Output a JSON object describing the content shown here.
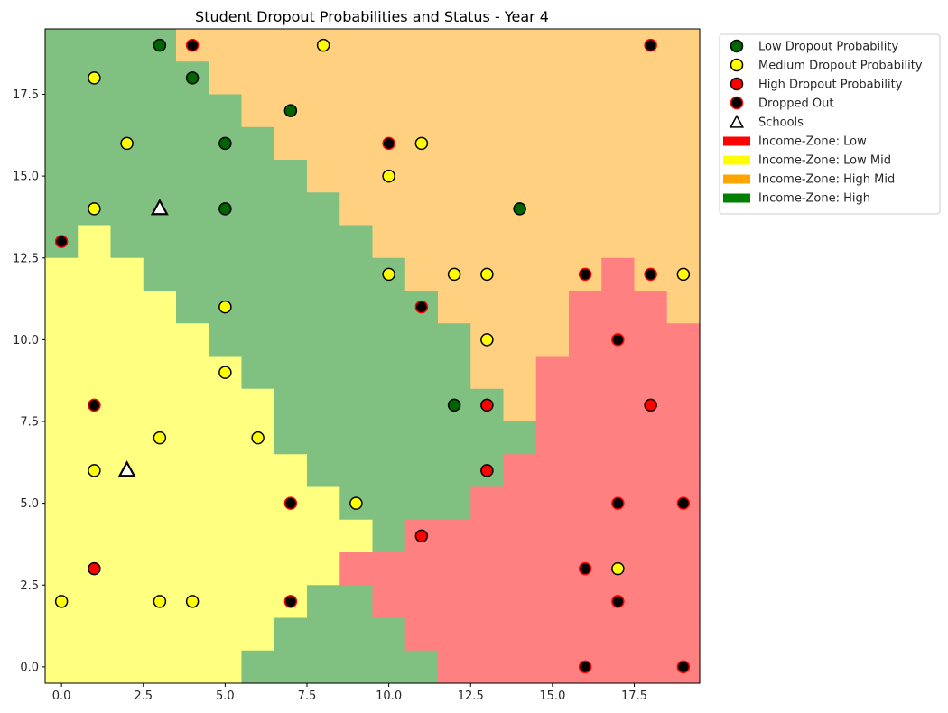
{
  "chart_data": {
    "type": "heatmap",
    "title": "Student Dropout Probabilities and Status - Year 4",
    "xlabel": "",
    "ylabel": "",
    "xlim": [
      -0.5,
      19.5
    ],
    "ylim": [
      -0.5,
      19.5
    ],
    "x_ticks": [
      "0.0",
      "2.5",
      "5.0",
      "7.5",
      "10.0",
      "12.5",
      "15.0",
      "17.5"
    ],
    "y_ticks": [
      "0.0",
      "2.5",
      "5.0",
      "7.5",
      "10.0",
      "12.5",
      "15.0",
      "17.5"
    ],
    "zone_colors": {
      "Low": "#ff8080",
      "Low Mid": "#ffff80",
      "High Mid": "#ffd080",
      "High": "#80c080"
    },
    "zone_grid_rows_top_to_bottom": [
      "HHHHAAAAAAAAAAAAAAAA",
      "HHHHHAAAAAAAAAAAAAAA",
      "HHHHHHAAAAAAAAAAAAAA",
      "HHHHHHHAAAAAAAAAAAAA",
      "HHHHHHHHAAAAAAAAAAAA",
      "HHHHHHHHHAAAAAAAAAAA",
      "HYHHHHHHHHAAAAAAAAAA",
      "YYYHHHHHHHHAAAAAARAA",
      "YYYYHHHHHHHHAAAARRRA",
      "YYYYYHHHHHHHHAAARRRR",
      "YYYYYYHHHHHHHAARRRRR",
      "YYYYYYYHHHHHHHARRRRR",
      "YYYYYYYHHHHHHHHRRRRR",
      "YYYYYYYYHHHHHHRRRRRR",
      "YYYYYYYYYHHHHRRRRRRR",
      "YYYYYYYYYYHRRRRRRRRR",
      "YYYYYYYYYRRRRRRRRRRR",
      "YYYYYYYYHHRRRRRRRRRR",
      "YYYYYYYHHHHRRRRRRRRR",
      "YYYYYYHHHHHHRRRRRRRR"
    ],
    "zone_code_legend": {
      "R": "Low",
      "Y": "Low Mid",
      "A": "High Mid",
      "H": "High"
    },
    "students": [
      {
        "x": 3,
        "y": 19,
        "level": "low"
      },
      {
        "x": 4,
        "y": 19,
        "level": "dropped"
      },
      {
        "x": 8,
        "y": 19,
        "level": "medium"
      },
      {
        "x": 18,
        "y": 19,
        "level": "dropped"
      },
      {
        "x": 1,
        "y": 18,
        "level": "medium"
      },
      {
        "x": 4,
        "y": 18,
        "level": "low"
      },
      {
        "x": 7,
        "y": 17,
        "level": "low"
      },
      {
        "x": 2,
        "y": 16,
        "level": "medium"
      },
      {
        "x": 5,
        "y": 16,
        "level": "low"
      },
      {
        "x": 10,
        "y": 16,
        "level": "dropped"
      },
      {
        "x": 11,
        "y": 16,
        "level": "medium"
      },
      {
        "x": 10,
        "y": 15,
        "level": "medium"
      },
      {
        "x": 1,
        "y": 14,
        "level": "medium"
      },
      {
        "x": 5,
        "y": 14,
        "level": "low"
      },
      {
        "x": 14,
        "y": 14,
        "level": "low"
      },
      {
        "x": 0,
        "y": 13,
        "level": "dropped"
      },
      {
        "x": 10,
        "y": 12,
        "level": "medium"
      },
      {
        "x": 12,
        "y": 12,
        "level": "medium"
      },
      {
        "x": 13,
        "y": 12,
        "level": "medium"
      },
      {
        "x": 16,
        "y": 12,
        "level": "dropped"
      },
      {
        "x": 18,
        "y": 12,
        "level": "dropped"
      },
      {
        "x": 19,
        "y": 12,
        "level": "medium"
      },
      {
        "x": 5,
        "y": 11,
        "level": "medium"
      },
      {
        "x": 11,
        "y": 11,
        "level": "dropped"
      },
      {
        "x": 13,
        "y": 10,
        "level": "medium"
      },
      {
        "x": 17,
        "y": 10,
        "level": "dropped"
      },
      {
        "x": 5,
        "y": 9,
        "level": "medium"
      },
      {
        "x": 1,
        "y": 8,
        "level": "dropped"
      },
      {
        "x": 12,
        "y": 8,
        "level": "low"
      },
      {
        "x": 13,
        "y": 8,
        "level": "high"
      },
      {
        "x": 18,
        "y": 8,
        "level": "high"
      },
      {
        "x": 3,
        "y": 7,
        "level": "medium"
      },
      {
        "x": 6,
        "y": 7,
        "level": "medium"
      },
      {
        "x": 1,
        "y": 6,
        "level": "medium"
      },
      {
        "x": 13,
        "y": 6,
        "level": "high"
      },
      {
        "x": 7,
        "y": 5,
        "level": "dropped"
      },
      {
        "x": 9,
        "y": 5,
        "level": "medium"
      },
      {
        "x": 17,
        "y": 5,
        "level": "dropped"
      },
      {
        "x": 19,
        "y": 5,
        "level": "dropped"
      },
      {
        "x": 11,
        "y": 4,
        "level": "high"
      },
      {
        "x": 1,
        "y": 3,
        "level": "high"
      },
      {
        "x": 16,
        "y": 3,
        "level": "dropped"
      },
      {
        "x": 17,
        "y": 3,
        "level": "medium"
      },
      {
        "x": 0,
        "y": 2,
        "level": "medium"
      },
      {
        "x": 3,
        "y": 2,
        "level": "medium"
      },
      {
        "x": 4,
        "y": 2,
        "level": "medium"
      },
      {
        "x": 7,
        "y": 2,
        "level": "dropped"
      },
      {
        "x": 17,
        "y": 2,
        "level": "dropped"
      },
      {
        "x": 16,
        "y": 0,
        "level": "dropped"
      },
      {
        "x": 19,
        "y": 0,
        "level": "dropped"
      }
    ],
    "schools": [
      {
        "x": 3,
        "y": 14
      },
      {
        "x": 2,
        "y": 6
      }
    ],
    "legend": {
      "placement": "outside-top-right",
      "entries": [
        {
          "label": "Low Dropout Probability",
          "kind": "circle",
          "fill": "#006400",
          "stroke": "#000000"
        },
        {
          "label": "Medium Dropout Probability",
          "kind": "circle",
          "fill": "#ffff00",
          "stroke": "#000000"
        },
        {
          "label": "High Dropout Probability",
          "kind": "circle",
          "fill": "#ff0000",
          "stroke": "#000000"
        },
        {
          "label": "Dropped Out",
          "kind": "dropped",
          "fill": "#000000",
          "stroke": "#ff0000"
        },
        {
          "label": "Schools",
          "kind": "triangle",
          "fill": "#ffffff",
          "stroke": "#000000"
        },
        {
          "label": "Income-Zone: Low",
          "kind": "patch",
          "fill": "#ff0000"
        },
        {
          "label": "Income-Zone: Low Mid",
          "kind": "patch",
          "fill": "#ffff00"
        },
        {
          "label": "Income-Zone: High Mid",
          "kind": "patch",
          "fill": "#ffa500"
        },
        {
          "label": "Income-Zone: High",
          "kind": "patch",
          "fill": "#008000"
        }
      ]
    },
    "marker_colors": {
      "low": {
        "fill": "#006400",
        "stroke": "#000000"
      },
      "medium": {
        "fill": "#ffff00",
        "stroke": "#000000"
      },
      "high": {
        "fill": "#ff0000",
        "stroke": "#000000"
      },
      "dropped": {
        "fill": "#000000",
        "stroke": "#ff0000"
      }
    },
    "grid": false
  }
}
